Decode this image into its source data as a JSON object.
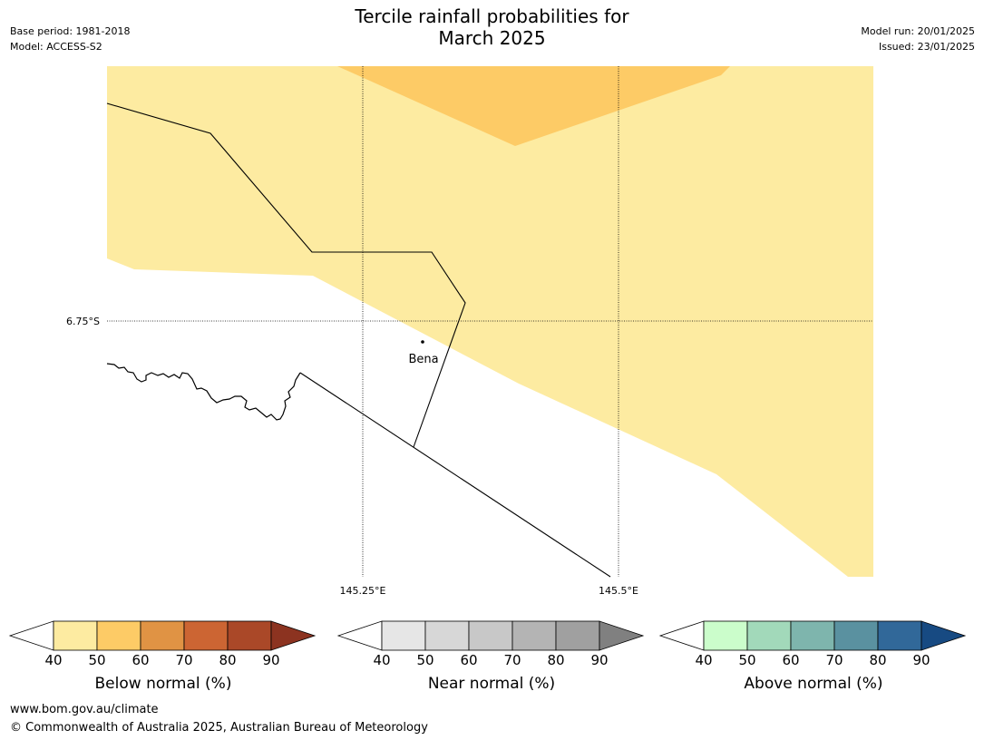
{
  "title_line1": "Tercile rainfall probabilities for",
  "title_line2": "March 2025",
  "base_period": "Base period: 1981-2018",
  "model": "Model: ACCESS-S2",
  "model_run": "Model run: 20/01/2025",
  "issued": "Issued: 23/01/2025",
  "map": {
    "lat_label": "6.75°S",
    "lon_labels": [
      "145.25°E",
      "145.5°E"
    ],
    "place_label": "Bena",
    "colors": {
      "below_40_50": "#fdeba1",
      "below_50_60": "#fdcb66"
    }
  },
  "colorbars": [
    {
      "label": "Below normal (%)",
      "ticks": [
        "40",
        "50",
        "60",
        "70",
        "80",
        "90"
      ],
      "colors": [
        "#ffffff",
        "#fdeba1",
        "#fdcb66",
        "#e09344",
        "#cc6533",
        "#aa4828",
        "#8c3320"
      ]
    },
    {
      "label": "Near normal (%)",
      "ticks": [
        "40",
        "50",
        "60",
        "70",
        "80",
        "90"
      ],
      "colors": [
        "#ffffff",
        "#e6e6e6",
        "#d7d7d7",
        "#c8c8c8",
        "#b4b4b4",
        "#a0a0a0",
        "#808080"
      ]
    },
    {
      "label": "Above normal (%)",
      "ticks": [
        "40",
        "50",
        "60",
        "70",
        "80",
        "90"
      ],
      "colors": [
        "#ffffff",
        "#cbfdcb",
        "#a2d9ba",
        "#7eb5ad",
        "#5a91a0",
        "#316899",
        "#174a82"
      ]
    }
  ],
  "footer_url": "www.bom.gov.au/climate",
  "footer_copyright": "© Commonwealth of Australia 2025, Australian Bureau of Meteorology"
}
